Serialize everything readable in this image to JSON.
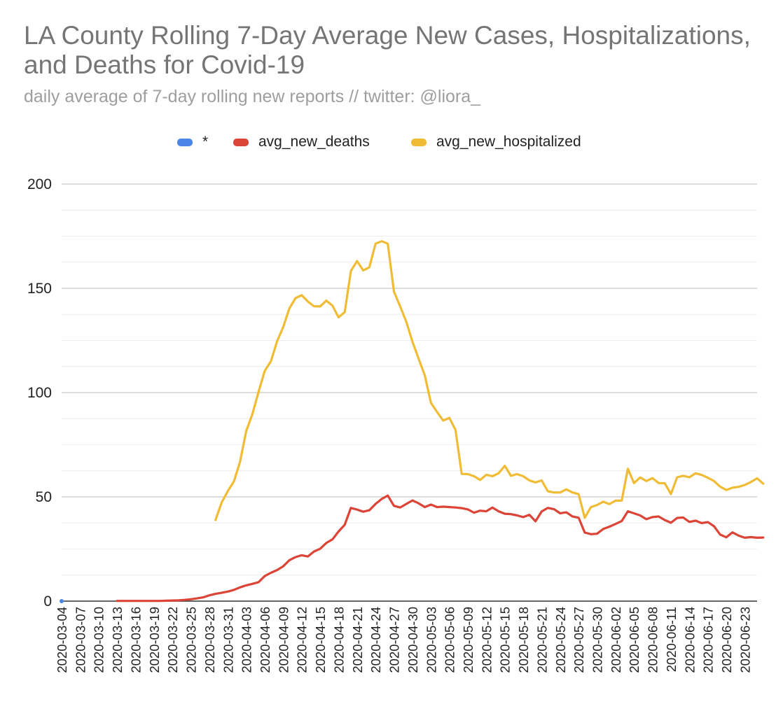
{
  "title": "LA County Rolling 7-Day Average New Cases, Hospitalizations, and Deaths for Covid-19",
  "subtitle": "daily average of 7-day rolling new reports // twitter: @liora_",
  "chart_data": {
    "type": "line",
    "title": "LA County Rolling 7-Day Average New Cases, Hospitalizations, and Deaths for Covid-19",
    "subtitle": "daily average of 7-day rolling new reports // twitter: @liora_",
    "xlabel": "",
    "ylabel": "",
    "ylim": [
      0,
      200
    ],
    "yticks": [
      0,
      50,
      100,
      150,
      200
    ],
    "grid": true,
    "minor_grid": true,
    "legend_position": "top",
    "start_date": "2020-03-04",
    "x_tick_labels": [
      "2020-03-04",
      "2020-03-07",
      "2020-03-10",
      "2020-03-13",
      "2020-03-16",
      "2020-03-19",
      "2020-03-22",
      "2020-03-25",
      "2020-03-28",
      "2020-03-31",
      "2020-04-03",
      "2020-04-06",
      "2020-04-09",
      "2020-04-12",
      "2020-04-15",
      "2020-04-18",
      "2020-04-21",
      "2020-04-24",
      "2020-04-27",
      "2020-04-30",
      "2020-05-03",
      "2020-05-06",
      "2020-05-09",
      "2020-05-12",
      "2020-05-15",
      "2020-05-18",
      "2020-05-21",
      "2020-05-24",
      "2020-05-27",
      "2020-05-30",
      "2020-06-02",
      "2020-06-05",
      "2020-06-08",
      "2020-06-11",
      "2020-06-14",
      "2020-06-17",
      "2020-06-20",
      "2020-06-23"
    ],
    "series": [
      {
        "name": "*",
        "color": "#4a86e8",
        "values": [
          0
        ]
      },
      {
        "name": "avg_new_deaths",
        "color": "#db4437",
        "values": [
          null,
          null,
          null,
          null,
          null,
          null,
          null,
          null,
          null,
          0.1,
          0.1,
          0.1,
          0.1,
          0.1,
          0.1,
          0.1,
          0.1,
          0.2,
          0.3,
          0.4,
          0.6,
          0.9,
          1.3,
          1.8,
          2.8,
          3.5,
          4.0,
          4.6,
          5.4,
          6.6,
          7.6,
          8.3,
          9.1,
          12.0,
          13.6,
          14.9,
          16.7,
          19.6,
          21.1,
          22.0,
          21.4,
          23.8,
          25.1,
          27.9,
          29.6,
          33.4,
          36.6,
          44.7,
          43.9,
          42.9,
          43.6,
          46.6,
          49.0,
          50.6,
          45.7,
          44.9,
          46.6,
          48.3,
          46.9,
          45.1,
          46.3,
          45.1,
          45.3,
          45.1,
          44.9,
          44.6,
          44.0,
          42.4,
          43.4,
          43.1,
          44.9,
          43.1,
          41.9,
          41.7,
          41.1,
          40.3,
          41.4,
          38.3,
          43.0,
          44.7,
          44.1,
          42.1,
          42.6,
          40.6,
          40.0,
          32.9,
          32.1,
          32.3,
          34.6,
          35.7,
          37.0,
          38.4,
          43.1,
          42.1,
          41.1,
          39.3,
          40.3,
          40.6,
          38.9,
          37.6,
          39.9,
          40.1,
          38.0,
          38.6,
          37.4,
          37.9,
          35.9,
          31.9,
          30.6,
          33.0,
          31.4,
          30.4,
          30.7,
          30.4,
          30.5
        ]
      },
      {
        "name": "avg_new_hospitalized",
        "color": "#f1bc35",
        "values": [
          null,
          null,
          null,
          null,
          null,
          null,
          null,
          null,
          null,
          null,
          null,
          null,
          null,
          null,
          null,
          null,
          null,
          null,
          null,
          null,
          null,
          null,
          null,
          null,
          null,
          38.9,
          47.3,
          52.8,
          57.5,
          66.9,
          81.6,
          89.7,
          100.4,
          110.4,
          115.0,
          124.6,
          131.4,
          140.3,
          145.3,
          146.7,
          143.7,
          141.4,
          141.3,
          144.1,
          141.7,
          136.1,
          138.6,
          158.3,
          163.1,
          158.6,
          160.1,
          171.4,
          172.6,
          171.4,
          148.4,
          141.4,
          134.0,
          124.4,
          116.3,
          108.3,
          95.1,
          90.7,
          86.6,
          87.9,
          82.1,
          61.0,
          60.9,
          59.9,
          58.1,
          60.6,
          59.9,
          61.3,
          64.9,
          60.1,
          60.9,
          59.9,
          57.9,
          56.9,
          57.9,
          52.7,
          52.1,
          52.1,
          53.6,
          52.1,
          51.3,
          39.9,
          45.1,
          46.1,
          47.7,
          46.5,
          48.2,
          48.2,
          63.5,
          56.6,
          59.3,
          57.6,
          59.0,
          56.6,
          56.5,
          51.3,
          59.4,
          60.1,
          59.4,
          61.3,
          60.5,
          59.2,
          57.6,
          54.9,
          53.3,
          54.4,
          54.8,
          55.7,
          57.1,
          58.9,
          56.3
        ]
      }
    ]
  }
}
